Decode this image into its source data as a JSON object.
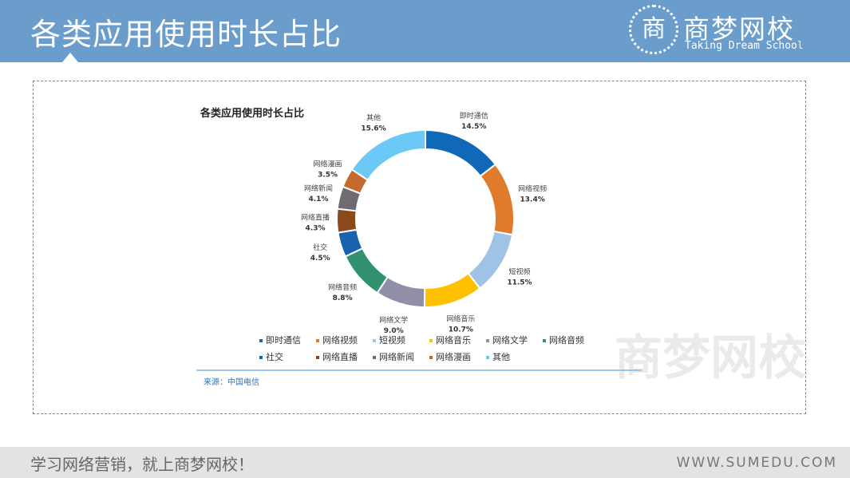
{
  "header": {
    "title": "各类应用使用时长占比",
    "brand_cn": "商梦网校",
    "brand_en": "Taking Dream School",
    "logo_char": "商"
  },
  "footer": {
    "slogan": "学习网络营销，就上商梦网校！",
    "url": "WWW.SUMEDU.COM"
  },
  "source": "来源：中国电信",
  "watermark": "商梦网校",
  "chart_data": {
    "type": "pie",
    "variant": "donut",
    "title": "各类应用使用时长占比",
    "legend_position": "bottom",
    "categories": [
      "即时通信",
      "网络视频",
      "短视频",
      "网络音乐",
      "网络文学",
      "网络音频",
      "社交",
      "网络直播",
      "网络新闻",
      "网络漫画",
      "其他"
    ],
    "values": [
      14.5,
      13.4,
      11.5,
      10.7,
      9.0,
      8.8,
      4.5,
      4.3,
      4.1,
      3.5,
      15.6
    ],
    "labels": [
      "14.5%",
      "13.4%",
      "11.5%",
      "10.7%",
      "9.0%",
      "8.8%",
      "4.5%",
      "4.3%",
      "4.1%",
      "3.5%",
      "15.6%"
    ],
    "colors": [
      "#1068b8",
      "#e07b2c",
      "#9fc3e7",
      "#ffc000",
      "#918fa8",
      "#349170",
      "#1a62b0",
      "#8a4a1c",
      "#6f6b70",
      "#c36b2e",
      "#6cc8f5"
    ]
  }
}
